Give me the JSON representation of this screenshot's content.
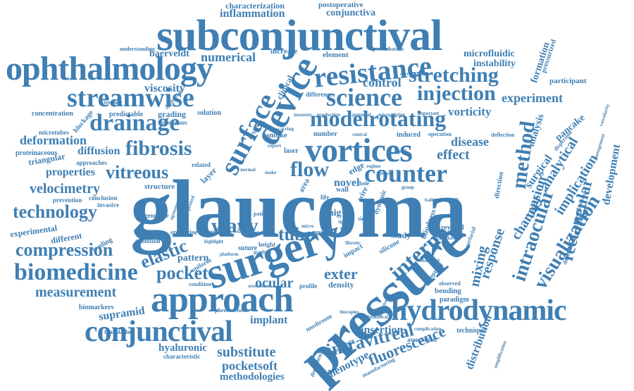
{
  "colors": {
    "word": "#3f7fb3",
    "background": "#ffffff"
  },
  "words": [
    {
      "text": "glaucoma"
    },
    {
      "text": "subconjunctival"
    },
    {
      "text": "pressure"
    },
    {
      "text": "surgery"
    },
    {
      "text": "ophthalmology"
    },
    {
      "text": "approach"
    },
    {
      "text": "hydrodynamic"
    },
    {
      "text": "conjunctival"
    },
    {
      "text": "device"
    },
    {
      "text": "streamwise"
    },
    {
      "text": "resistance"
    },
    {
      "text": "science"
    },
    {
      "text": "vortices"
    },
    {
      "text": "surface"
    },
    {
      "text": "drainage"
    },
    {
      "text": "modelrotating"
    },
    {
      "text": "counter"
    },
    {
      "text": "biomedicine"
    },
    {
      "text": "compression"
    },
    {
      "text": "technology"
    },
    {
      "text": "fibrosis"
    },
    {
      "text": "injection"
    },
    {
      "text": "stretching"
    },
    {
      "text": "flow"
    },
    {
      "text": "method"
    },
    {
      "text": "interno"
    },
    {
      "text": "intravitreal"
    },
    {
      "text": "visualization"
    },
    {
      "text": "intraocular"
    },
    {
      "text": "rectangular"
    },
    {
      "text": "vitreous"
    },
    {
      "text": "pocket"
    },
    {
      "text": "measurement"
    },
    {
      "text": "velocimetry"
    },
    {
      "text": "elastic"
    },
    {
      "text": "wavy"
    },
    {
      "text": "exter"
    },
    {
      "text": "ocular"
    },
    {
      "text": "substitute"
    },
    {
      "text": "pocketsoft"
    },
    {
      "text": "fluorescence"
    },
    {
      "text": "mixing"
    },
    {
      "text": "response"
    },
    {
      "text": "channel"
    },
    {
      "text": "tension"
    },
    {
      "text": "implication"
    },
    {
      "text": "analytical"
    },
    {
      "text": "development"
    },
    {
      "text": "surgical"
    },
    {
      "text": "pancake"
    },
    {
      "text": "analysis"
    },
    {
      "text": "experiment"
    },
    {
      "text": "vorticity"
    },
    {
      "text": "disease"
    },
    {
      "text": "effect"
    },
    {
      "text": "control"
    },
    {
      "text": "viscosity"
    },
    {
      "text": "numerical"
    },
    {
      "text": "diffusion"
    },
    {
      "text": "deformation"
    },
    {
      "text": "properties"
    },
    {
      "text": "supramid"
    },
    {
      "text": "hyaluronic"
    },
    {
      "text": "methodologies"
    },
    {
      "text": "distribution"
    },
    {
      "text": "phenotype"
    },
    {
      "text": "insertion"
    },
    {
      "text": "implant"
    },
    {
      "text": "tube"
    },
    {
      "text": "inflammation"
    },
    {
      "text": "characterization"
    },
    {
      "text": "conjunctiva"
    },
    {
      "text": "postoperative"
    },
    {
      "text": "baerveldt"
    },
    {
      "text": "microfluidic"
    },
    {
      "text": "instability"
    },
    {
      "text": "formation"
    },
    {
      "text": "pressurized"
    },
    {
      "text": "participant"
    },
    {
      "text": "increase"
    },
    {
      "text": "element"
    },
    {
      "text": "clinical"
    },
    {
      "text": "grading"
    },
    {
      "text": "solution"
    },
    {
      "text": "concentration"
    },
    {
      "text": "predictable"
    },
    {
      "text": "blockage"
    },
    {
      "text": "microtubes"
    },
    {
      "text": "proteinaceous"
    },
    {
      "text": "triangular"
    },
    {
      "text": "approaches"
    },
    {
      "text": "prevention"
    },
    {
      "text": "conclusion"
    },
    {
      "text": "invasive"
    },
    {
      "text": "experimental"
    },
    {
      "text": "different"
    },
    {
      "text": "leading"
    },
    {
      "text": "genotype"
    },
    {
      "text": "evolution"
    },
    {
      "text": "spanwise"
    },
    {
      "text": "button"
    },
    {
      "text": "pattern"
    },
    {
      "text": "uniform"
    },
    {
      "text": "structure"
    },
    {
      "text": "processes"
    },
    {
      "text": "related"
    },
    {
      "text": "layer"
    },
    {
      "text": "system"
    },
    {
      "text": "smoke"
    },
    {
      "text": "number"
    },
    {
      "text": "induced"
    },
    {
      "text": "operation"
    },
    {
      "text": "novel"
    },
    {
      "text": "wall"
    },
    {
      "text": "edge"
    },
    {
      "text": "laser"
    },
    {
      "text": "mig"
    },
    {
      "text": "area"
    },
    {
      "text": "wire"
    },
    {
      "text": "dynamic"
    },
    {
      "text": "blindness"
    },
    {
      "text": "study"
    },
    {
      "text": "reynold"
    },
    {
      "text": "silicone"
    },
    {
      "text": "result"
    },
    {
      "text": "ring"
    },
    {
      "text": "tissue"
    },
    {
      "text": "suture"
    },
    {
      "text": "height"
    },
    {
      "text": "density"
    },
    {
      "text": "profile"
    },
    {
      "text": "bending"
    },
    {
      "text": "paradigm"
    },
    {
      "text": "observed"
    },
    {
      "text": "technique"
    },
    {
      "text": "mushroom"
    },
    {
      "text": "complete"
    },
    {
      "text": "association"
    },
    {
      "text": "biomarkers"
    },
    {
      "text": "translating"
    },
    {
      "text": "characteristic"
    },
    {
      "text": "condition"
    },
    {
      "text": "phenomenon"
    },
    {
      "text": "hole"
    },
    {
      "text": "sided"
    },
    {
      "text": "patient"
    },
    {
      "text": "difference"
    },
    {
      "text": "direction"
    },
    {
      "text": "deflection"
    },
    {
      "text": "perturbation"
    },
    {
      "text": "understanding"
    },
    {
      "text": "extending"
    },
    {
      "text": "application"
    },
    {
      "text": "correlation"
    },
    {
      "text": "manufacturing"
    },
    {
      "text": "dependence"
    },
    {
      "text": "simplification"
    },
    {
      "text": "complication"
    },
    {
      "text": "interfacial"
    },
    {
      "text": "optical"
    },
    {
      "text": "mathematical"
    },
    {
      "text": "standard"
    },
    {
      "text": "calculation"
    },
    {
      "text": "following"
    },
    {
      "text": "dimensional"
    },
    {
      "text": "nondimensional"
    },
    {
      "text": "management"
    },
    {
      "text": "dispersion"
    },
    {
      "text": "vascularity"
    },
    {
      "text": "important"
    },
    {
      "text": "micromixing"
    },
    {
      "text": "production"
    },
    {
      "text": "potential"
    },
    {
      "text": "measure"
    },
    {
      "text": "scarring"
    },
    {
      "text": "central"
    },
    {
      "text": "report"
    },
    {
      "text": "regime"
    },
    {
      "text": "therapies"
    },
    {
      "text": "disturbance"
    },
    {
      "text": "impact"
    },
    {
      "text": "gradient"
    },
    {
      "text": "assessment"
    },
    {
      "text": "highlight"
    },
    {
      "text": "perfect"
    },
    {
      "text": "platform"
    },
    {
      "text": "fibrotic"
    },
    {
      "text": "ballooning"
    },
    {
      "text": "group"
    },
    {
      "text": "life"
    },
    {
      "text": "make"
    },
    {
      "text": "term"
    },
    {
      "text": "normal"
    },
    {
      "text": "micro"
    },
    {
      "text": "mass"
    },
    {
      "text": "speed"
    },
    {
      "text": "tip"
    },
    {
      "text": "printed"
    },
    {
      "text": "agreement"
    },
    {
      "text": "particle"
    }
  ]
}
